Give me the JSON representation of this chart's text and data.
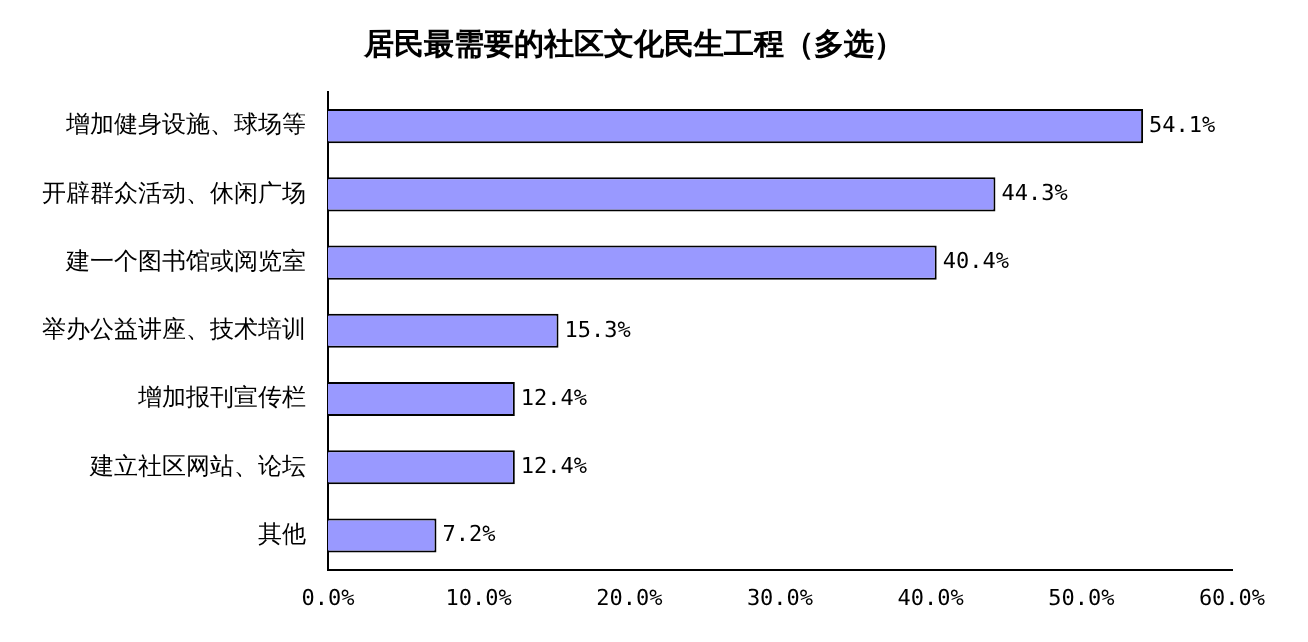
{
  "chart_data": {
    "type": "bar",
    "orientation": "horizontal",
    "title": "居民最需要的社区文化民生工程（多选）",
    "categories": [
      "增加健身设施、球场等",
      "开辟群众活动、休闲广场",
      "建一个图书馆或阅览室",
      "举办公益讲座、技术培训",
      "增加报刊宣传栏",
      "建立社区网站、论坛",
      "其他"
    ],
    "values": [
      54.1,
      44.3,
      40.4,
      15.3,
      12.4,
      12.4,
      7.2
    ],
    "value_labels": [
      "54.1%",
      "44.3%",
      "40.4%",
      "15.3%",
      "12.4%",
      "12.4%",
      "7.2%"
    ],
    "color": "#9999ff",
    "xlim": [
      0,
      60
    ],
    "xticks": [
      {
        "value": 0,
        "label": "0.0%"
      },
      {
        "value": 10,
        "label": "10.0%"
      },
      {
        "value": 20,
        "label": "20.0%"
      },
      {
        "value": 30,
        "label": "30.0%"
      },
      {
        "value": 40,
        "label": "40.0%"
      },
      {
        "value": 50,
        "label": "50.0%"
      },
      {
        "value": 60,
        "label": "60.0%"
      }
    ],
    "grid": false,
    "legend": false
  }
}
